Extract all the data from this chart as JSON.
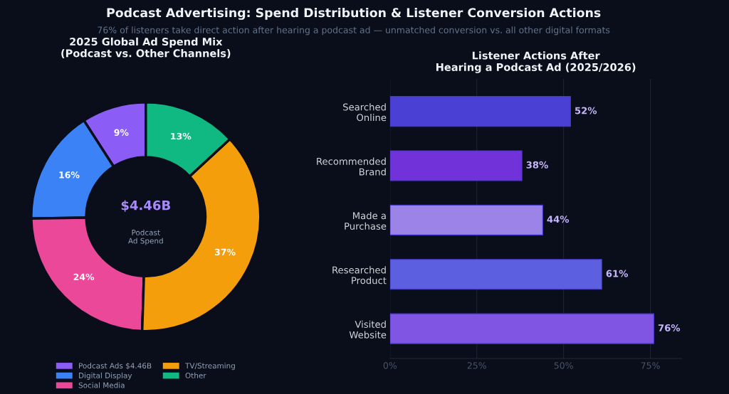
{
  "chart_data": [
    {
      "type": "donut",
      "title": "2025 Global Ad Spend Mix\n(Podcast vs. Other Channels)",
      "categories": [
        "Podcast Ads $4.46B",
        "Digital Display",
        "Social Media",
        "TV/Streaming",
        "Other"
      ],
      "values": [
        9,
        16,
        24,
        37,
        13
      ],
      "colors": [
        "#8b5cf6",
        "#3b82f6",
        "#ec4899",
        "#f59e0b",
        "#10b981"
      ],
      "value_labels": [
        "9%",
        "16%",
        "24%",
        "37%",
        "13%"
      ],
      "legend": "bottom",
      "annotations": [
        "Podcast Advertising: Spend Distribution & Listener Conversion Actions",
        "76% of listeners take direct action after hearing a podcast ad — unmatched conversion vs. all other digital formats",
        "$4.46B",
        "Podcast\nAd Spend"
      ]
    },
    {
      "type": "bar",
      "orientation": "horizontal",
      "title": "Listener Actions After\nHearing a Podcast Ad (2025/2026)",
      "categories": [
        "Searched\nOnline",
        "Recommended\nBrand",
        "Made a\nPurchase",
        "Researched\nProduct",
        "Visited\nWebsite"
      ],
      "values": [
        52,
        38,
        44,
        61,
        76
      ],
      "colors": [
        "#4a40d4",
        "#7232d9",
        "#9b83e8",
        "#5b5fe0",
        "#8155e3"
      ],
      "value_labels": [
        "52%",
        "38%",
        "44%",
        "61%",
        "76%"
      ],
      "xlim": [
        0,
        84
      ],
      "xticks": [
        {
          "value": 0,
          "label": "0%"
        },
        {
          "value": 25,
          "label": "25%"
        },
        {
          "value": 50,
          "label": "50%"
        },
        {
          "value": 75,
          "label": "75%"
        }
      ],
      "grid": "x"
    }
  ]
}
